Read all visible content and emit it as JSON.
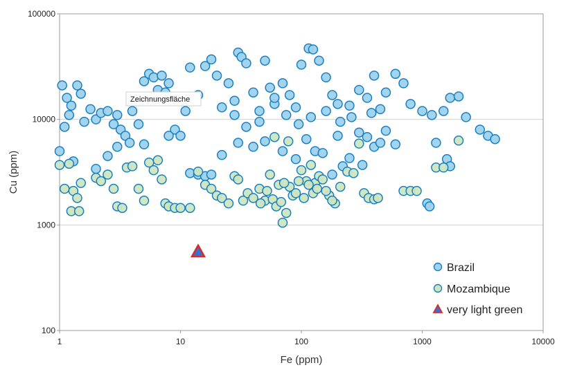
{
  "chart_data": {
    "type": "scatter",
    "title": "",
    "xlabel": "Fe (ppm)",
    "ylabel": "Cu (ppm)",
    "xscale": "log",
    "yscale": "log",
    "xlim": [
      1,
      10000
    ],
    "ylim": [
      100,
      100000
    ],
    "x_ticks": [
      "1",
      "10",
      "100",
      "1000",
      "10000"
    ],
    "y_ticks": [
      "100",
      "1000",
      "10000",
      "100000"
    ],
    "grid": "horizontal",
    "legend_position": "bottom-right",
    "annotation": "Zeichnungsfläche",
    "series": [
      {
        "name": "Brazil",
        "color": "#9dd3ec",
        "edge": "#1a7fc1",
        "marker": "circle",
        "points": [
          [
            1.05,
            21000
          ],
          [
            1.15,
            16000
          ],
          [
            1.25,
            13500
          ],
          [
            1.4,
            21000
          ],
          [
            1.5,
            17500
          ],
          [
            1.1,
            8500
          ],
          [
            1.2,
            11000
          ],
          [
            1.6,
            9500
          ],
          [
            1.8,
            12500
          ],
          [
            2.0,
            10000
          ],
          [
            2.2,
            11500
          ],
          [
            2.5,
            12000
          ],
          [
            2.8,
            9000
          ],
          [
            3.0,
            11000
          ],
          [
            3.2,
            8000
          ],
          [
            3.5,
            7000
          ],
          [
            3.8,
            6000
          ],
          [
            4.0,
            12000
          ],
          [
            4.5,
            9000
          ],
          [
            5.0,
            23000
          ],
          [
            5.5,
            27000
          ],
          [
            6.0,
            25000
          ],
          [
            6.5,
            19000
          ],
          [
            7.0,
            26000
          ],
          [
            7.5,
            18000
          ],
          [
            8.0,
            22000
          ],
          [
            9.0,
            8000
          ],
          [
            10.0,
            7000
          ],
          [
            11.0,
            12000
          ],
          [
            12.0,
            31000
          ],
          [
            14.0,
            17000
          ],
          [
            16.0,
            32000
          ],
          [
            18.0,
            37000
          ],
          [
            20.0,
            26000
          ],
          [
            22.0,
            13000
          ],
          [
            25.0,
            22000
          ],
          [
            28.0,
            15000
          ],
          [
            30.0,
            43000
          ],
          [
            32.0,
            39000
          ],
          [
            35.0,
            34000
          ],
          [
            40.0,
            18000
          ],
          [
            45.0,
            12000
          ],
          [
            50.0,
            36000
          ],
          [
            55.0,
            20000
          ],
          [
            60.0,
            14000
          ],
          [
            70.0,
            22000
          ],
          [
            80.0,
            17000
          ],
          [
            90.0,
            13000
          ],
          [
            100.0,
            33000
          ],
          [
            115.0,
            47000
          ],
          [
            125.0,
            46000
          ],
          [
            140.0,
            36000
          ],
          [
            160.0,
            25000
          ],
          [
            180.0,
            17000
          ],
          [
            200.0,
            14000
          ],
          [
            250.0,
            13500
          ],
          [
            300.0,
            19000
          ],
          [
            350.0,
            16000
          ],
          [
            400.0,
            26000
          ],
          [
            500.0,
            18000
          ],
          [
            600.0,
            27000
          ],
          [
            700.0,
            22000
          ],
          [
            800.0,
            14000
          ],
          [
            1000.0,
            12000
          ],
          [
            1200.0,
            11000
          ],
          [
            1500.0,
            12000
          ],
          [
            1700.0,
            16000
          ],
          [
            2000.0,
            16500
          ],
          [
            2300.0,
            10500
          ],
          [
            3000.0,
            8000
          ],
          [
            3500.0,
            7000
          ],
          [
            4000.0,
            6500
          ],
          [
            1300.0,
            6000
          ],
          [
            1600.0,
            4200
          ],
          [
            1700.0,
            3600
          ],
          [
            1100.0,
            1600
          ],
          [
            1150.0,
            1500
          ],
          [
            1.0,
            5000
          ],
          [
            1.3,
            4000
          ],
          [
            2.0,
            3400
          ],
          [
            2.5,
            4500
          ],
          [
            3.0,
            5500
          ],
          [
            5.0,
            5800
          ],
          [
            8.0,
            7000
          ],
          [
            12.0,
            3100
          ],
          [
            14.0,
            3000
          ],
          [
            16.0,
            2900
          ],
          [
            18.0,
            3000
          ],
          [
            22.0,
            4600
          ],
          [
            30.0,
            6000
          ],
          [
            40.0,
            5500
          ],
          [
            50.0,
            6200
          ],
          [
            70.0,
            5000
          ],
          [
            90.0,
            4200
          ],
          [
            110.0,
            6500
          ],
          [
            130.0,
            5000
          ],
          [
            150.0,
            4800
          ],
          [
            200.0,
            7000
          ],
          [
            250.0,
            4300
          ],
          [
            300.0,
            7500
          ],
          [
            350.0,
            6800
          ],
          [
            400.0,
            5500
          ],
          [
            450.0,
            6000
          ],
          [
            500.0,
            7800
          ],
          [
            600.0,
            5800
          ],
          [
            320.0,
            3700
          ],
          [
            220.0,
            3600
          ],
          [
            180.0,
            3000
          ],
          [
            60.0,
            16000
          ],
          [
            75.0,
            11000
          ],
          [
            95.0,
            9000
          ],
          [
            45.0,
            9500
          ],
          [
            35.0,
            8500
          ],
          [
            28.0,
            11000
          ],
          [
            120.0,
            10500
          ],
          [
            160.0,
            12000
          ],
          [
            210.0,
            9500
          ],
          [
            260.0,
            10500
          ],
          [
            380.0,
            11500
          ],
          [
            450.0,
            12500
          ]
        ]
      },
      {
        "name": "Mozambique",
        "color": "#cde6c0",
        "edge": "#1a7fc1",
        "marker": "circle",
        "points": [
          [
            1.0,
            3700
          ],
          [
            1.2,
            3800
          ],
          [
            1.1,
            2200
          ],
          [
            1.3,
            2100
          ],
          [
            1.5,
            2500
          ],
          [
            1.4,
            1800
          ],
          [
            1.25,
            1350
          ],
          [
            1.45,
            1350
          ],
          [
            2.0,
            2800
          ],
          [
            2.2,
            2600
          ],
          [
            2.5,
            3000
          ],
          [
            2.8,
            2200
          ],
          [
            3.0,
            1500
          ],
          [
            3.3,
            1450
          ],
          [
            3.6,
            3500
          ],
          [
            4.0,
            3600
          ],
          [
            4.5,
            2200
          ],
          [
            5.0,
            1700
          ],
          [
            5.5,
            3900
          ],
          [
            6.0,
            3300
          ],
          [
            6.5,
            4100
          ],
          [
            7.0,
            2700
          ],
          [
            7.5,
            1600
          ],
          [
            8.0,
            1500
          ],
          [
            9.0,
            1450
          ],
          [
            10.0,
            1450
          ],
          [
            12.0,
            1450
          ],
          [
            14.0,
            3200
          ],
          [
            16.0,
            2400
          ],
          [
            18.0,
            2200
          ],
          [
            20.0,
            1900
          ],
          [
            22.0,
            1800
          ],
          [
            25.0,
            1600
          ],
          [
            28.0,
            2900
          ],
          [
            30.0,
            2700
          ],
          [
            33.0,
            1700
          ],
          [
            36.0,
            2000
          ],
          [
            40.0,
            1800
          ],
          [
            45.0,
            2200
          ],
          [
            50.0,
            1700
          ],
          [
            55.0,
            3000
          ],
          [
            60.0,
            6800
          ],
          [
            65.0,
            2400
          ],
          [
            70.0,
            1050
          ],
          [
            75.0,
            1300
          ],
          [
            80.0,
            2300
          ],
          [
            85.0,
            1900
          ],
          [
            90.0,
            2000
          ],
          [
            100.0,
            3300
          ],
          [
            110.0,
            2600
          ],
          [
            120.0,
            3700
          ],
          [
            130.0,
            2500
          ],
          [
            140.0,
            2900
          ],
          [
            150.0,
            2700
          ],
          [
            170.0,
            1900
          ],
          [
            190.0,
            1600
          ],
          [
            210.0,
            2300
          ],
          [
            240.0,
            3200
          ],
          [
            270.0,
            3100
          ],
          [
            300.0,
            5900
          ],
          [
            330.0,
            2000
          ],
          [
            360.0,
            1800
          ],
          [
            400.0,
            1750
          ],
          [
            430.0,
            1800
          ],
          [
            700.0,
            2100
          ],
          [
            800.0,
            2100
          ],
          [
            900.0,
            2100
          ],
          [
            1300.0,
            3500
          ],
          [
            1500.0,
            3500
          ],
          [
            2000.0,
            6300
          ],
          [
            46.0,
            1600
          ],
          [
            52.0,
            2100
          ],
          [
            58.0,
            1750
          ],
          [
            62.0,
            1500
          ],
          [
            68.0,
            1650
          ],
          [
            72.0,
            2500
          ],
          [
            78.0,
            6200
          ],
          [
            95.0,
            2600
          ],
          [
            105.0,
            1800
          ],
          [
            115.0,
            2400
          ],
          [
            125.0,
            2000
          ],
          [
            135.0,
            2200
          ],
          [
            160.0,
            2100
          ],
          [
            180.0,
            1700
          ]
        ]
      },
      {
        "name": "very light green",
        "color": "#3b6fd1",
        "edge": "#d92b2b",
        "marker": "triangle",
        "points": [
          [
            14,
            560
          ]
        ]
      }
    ]
  }
}
